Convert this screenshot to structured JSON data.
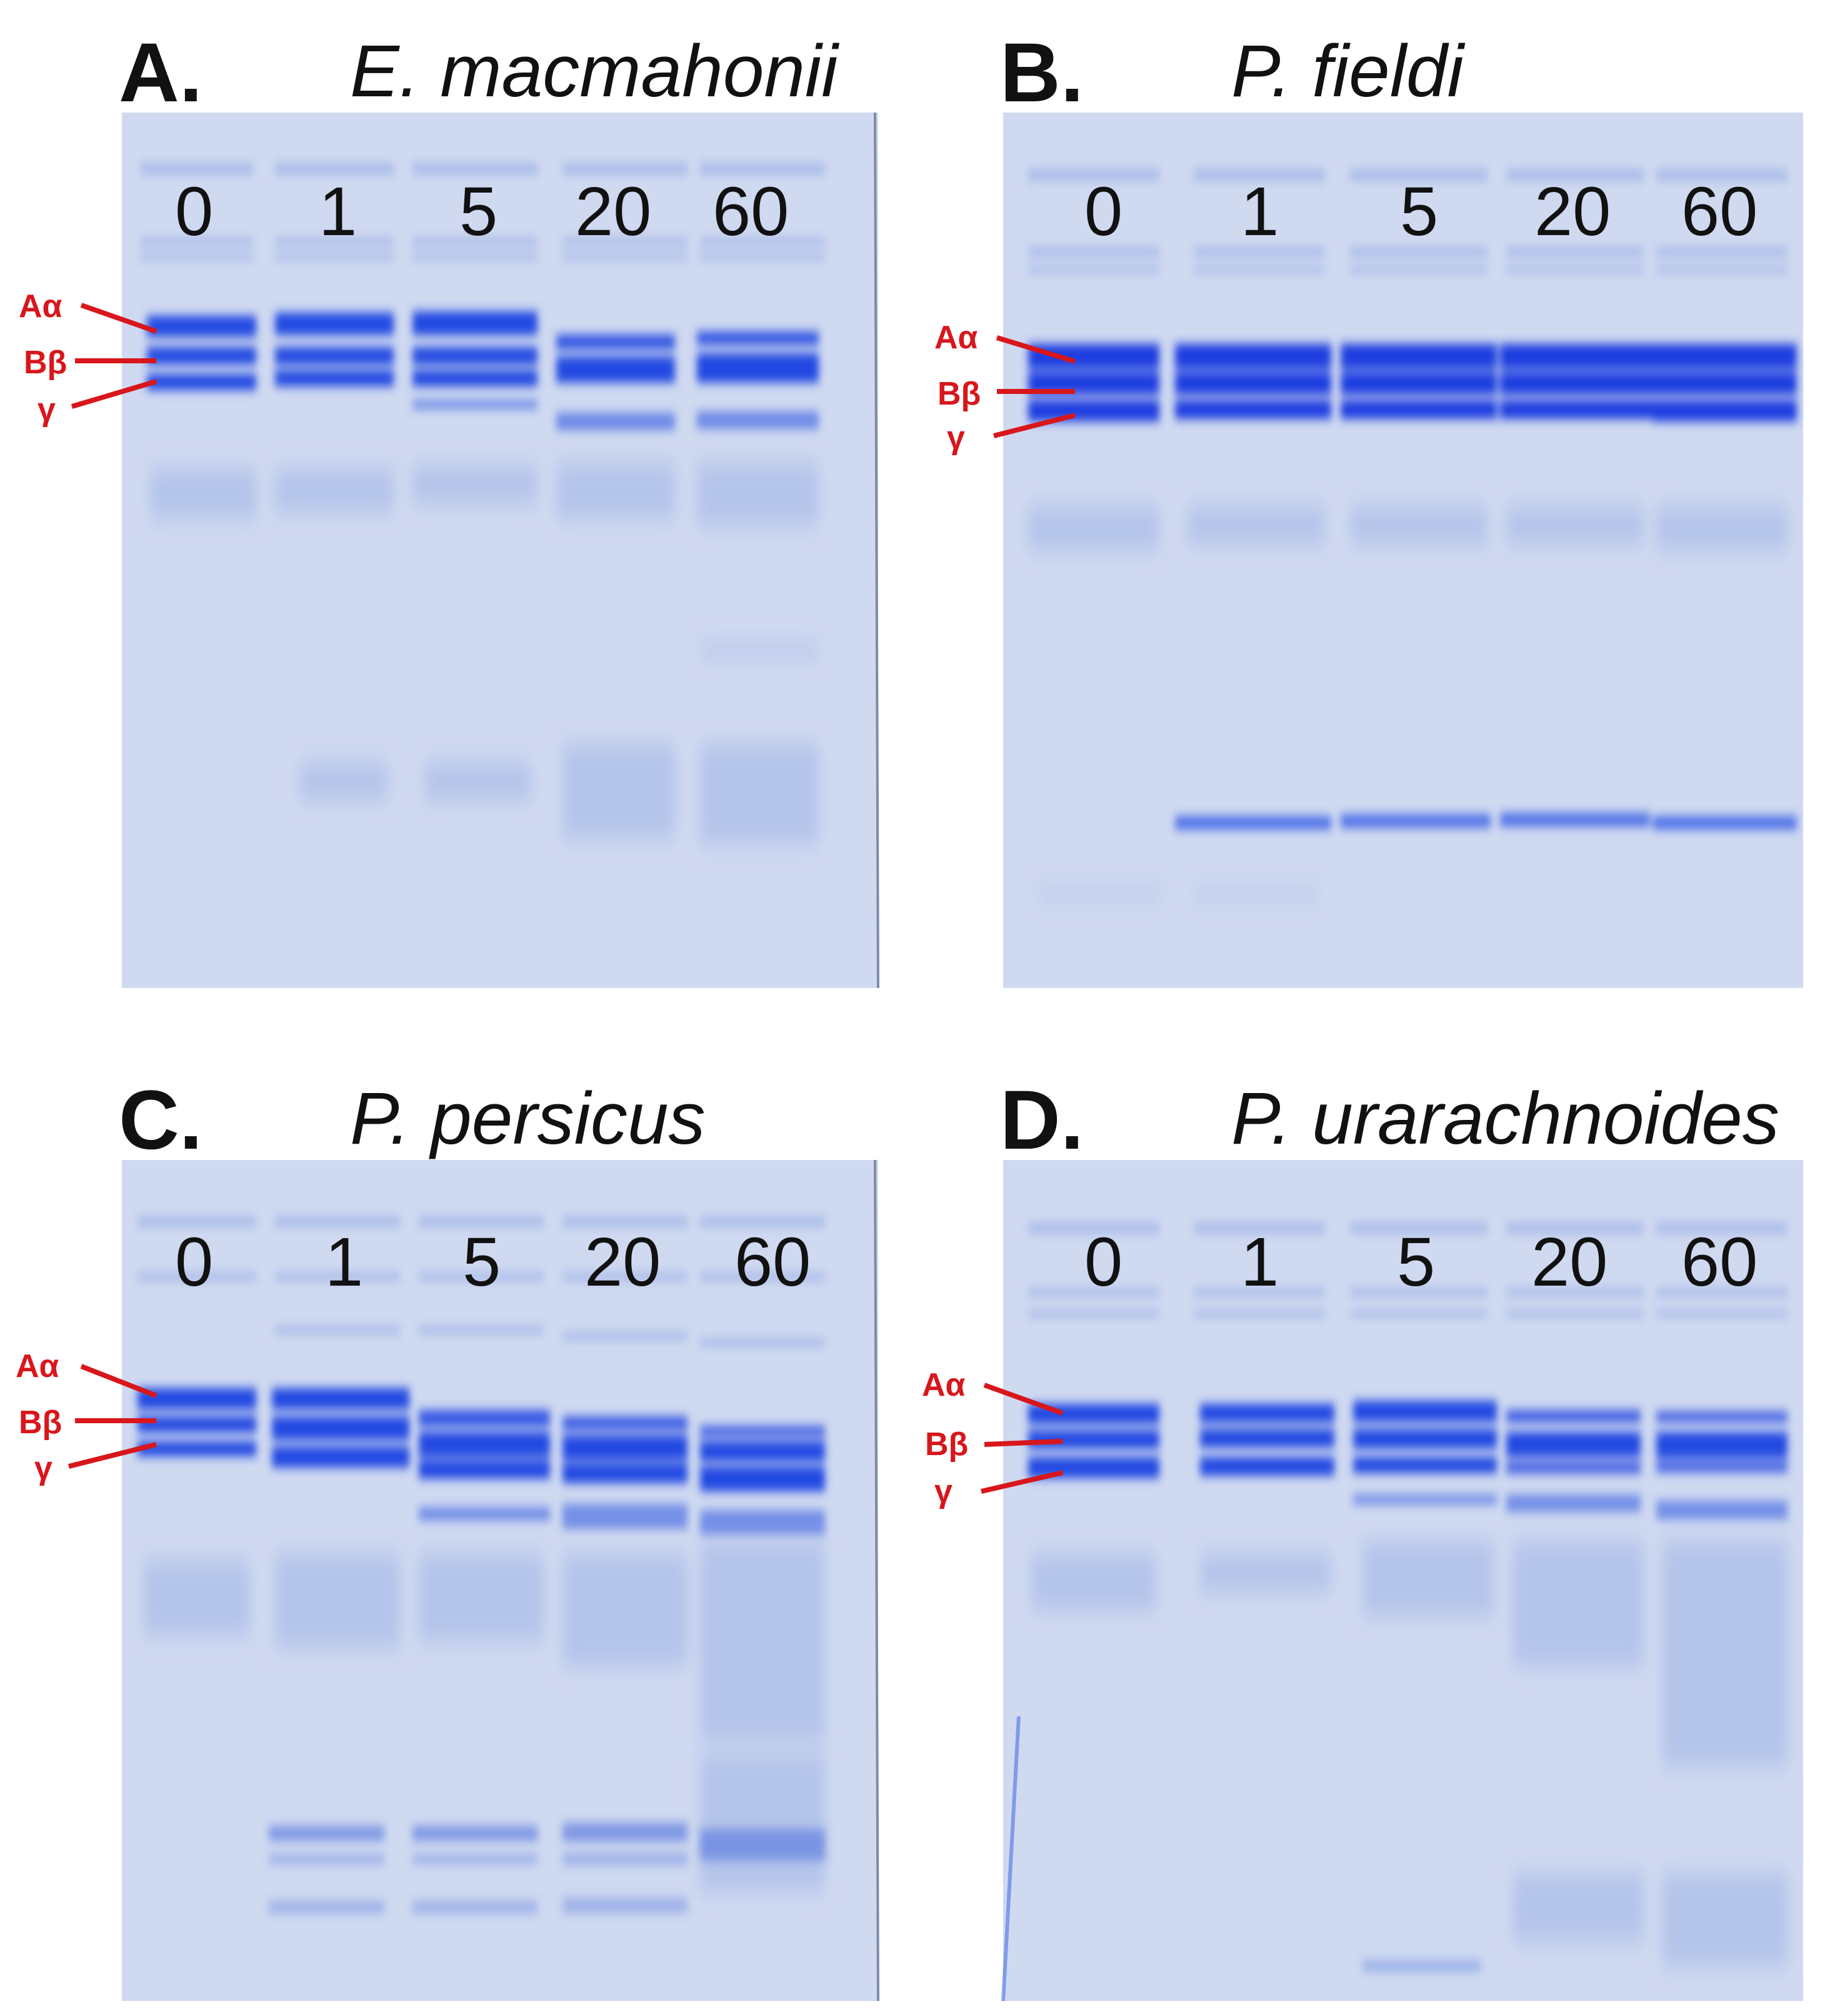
{
  "figure": {
    "panels": [
      {
        "letter": "A.",
        "species": "E. macmahonii",
        "lanes": [
          "0",
          "1",
          "5",
          "20",
          "60"
        ],
        "markers": [
          "Aα",
          "Bβ",
          "γ"
        ]
      },
      {
        "letter": "B.",
        "species": "P. fieldi",
        "lanes": [
          "0",
          "1",
          "5",
          "20",
          "60"
        ],
        "markers": [
          "Aα",
          "Bβ",
          "γ"
        ]
      },
      {
        "letter": "C.",
        "species": "P. persicus",
        "lanes": [
          "0",
          "1",
          "5",
          "20",
          "60"
        ],
        "markers": [
          "Aα",
          "Bβ",
          "γ"
        ]
      },
      {
        "letter": "D.",
        "species": "P. urarachnoides",
        "lanes": [
          "0",
          "1",
          "5",
          "20",
          "60"
        ],
        "markers": [
          "Aα",
          "Bβ",
          "γ"
        ]
      }
    ]
  },
  "colors": {
    "gel_background": "#c9d5ee",
    "band_strong": "#1e3fe0",
    "band_faint": "#8ea8e6",
    "marker_red": "#d8161b",
    "text": "#111111"
  }
}
